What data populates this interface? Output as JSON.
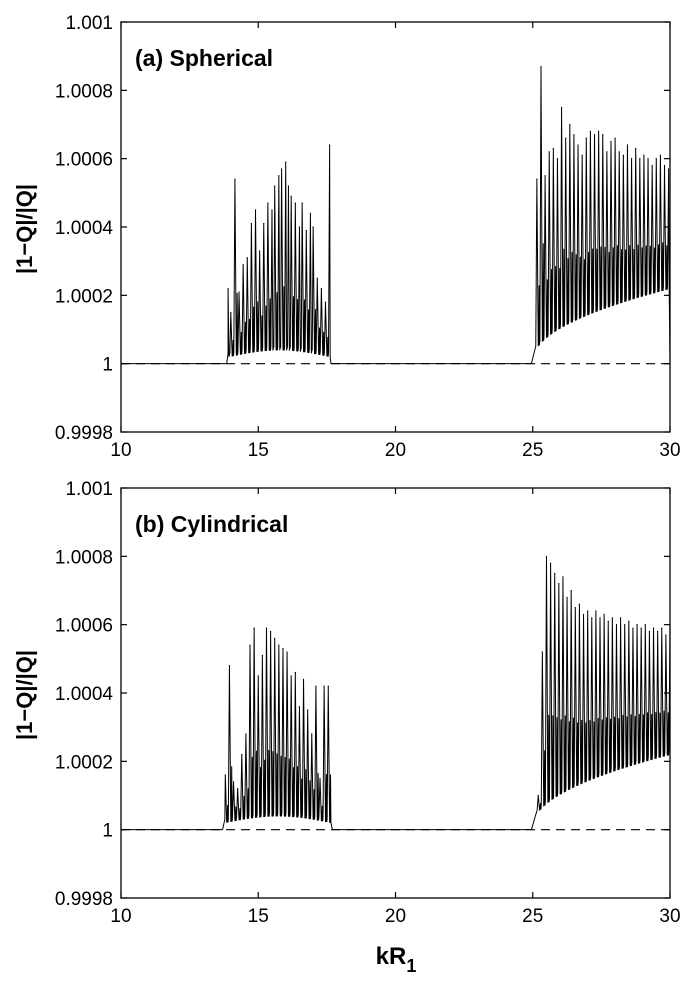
{
  "chart_data": [
    {
      "type": "line",
      "title": "(a) Spherical",
      "xlabel": "",
      "ylabel": "|1−Q|/|Q|",
      "xlim": [
        10,
        30
      ],
      "ylim": [
        0.9998,
        1.001
      ],
      "xticks": [
        "10",
        "15",
        "20",
        "25",
        "30"
      ],
      "yticks": [
        "0.9998",
        "1",
        "1.0002",
        "1.0004",
        "1.0006",
        "1.0008",
        "1.001"
      ],
      "reference_line": {
        "y": 1,
        "style": "dashed"
      },
      "bands": [
        {
          "start": 13.9,
          "end": 17.65,
          "base_start": 1.00002,
          "base_mid": 1.00004,
          "base_end": 1.00002,
          "peaks": [
            [
              13.9,
              1.00022
            ],
            [
              14.0,
              1.00015
            ],
            [
              14.15,
              1.00054
            ],
            [
              14.3,
              1.00021
            ],
            [
              14.45,
              1.00029
            ],
            [
              14.6,
              1.00031
            ],
            [
              14.75,
              1.00041
            ],
            [
              14.9,
              1.00045
            ],
            [
              15.05,
              1.00033
            ],
            [
              15.2,
              1.00041
            ],
            [
              15.35,
              1.00047
            ],
            [
              15.5,
              1.00045
            ],
            [
              15.6,
              1.00052
            ],
            [
              15.75,
              1.00055
            ],
            [
              15.85,
              1.00057
            ],
            [
              16.0,
              1.00059
            ],
            [
              16.1,
              1.00052
            ],
            [
              16.2,
              1.00049
            ],
            [
              16.35,
              1.00047
            ],
            [
              16.5,
              1.0004
            ],
            [
              16.6,
              1.00047
            ],
            [
              16.75,
              1.00039
            ],
            [
              16.9,
              1.00044
            ],
            [
              17.0,
              1.0004
            ],
            [
              17.15,
              1.00025
            ],
            [
              17.3,
              1.00022
            ],
            [
              17.45,
              1.00018
            ],
            [
              17.6,
              1.00064
            ]
          ]
        },
        {
          "start": 25.0,
          "end": 30.0,
          "base_start": 1.00001,
          "base_end": 1.00022,
          "peaks": [
            [
              25.15,
              1.00054
            ],
            [
              25.3,
              1.00087
            ],
            [
              25.45,
              1.00055
            ],
            [
              25.6,
              1.00062
            ],
            [
              25.75,
              1.00063
            ],
            [
              25.9,
              1.0006
            ],
            [
              26.05,
              1.00075
            ],
            [
              26.2,
              1.00066
            ],
            [
              26.35,
              1.0007
            ],
            [
              26.5,
              1.00067
            ],
            [
              26.65,
              1.00064
            ],
            [
              26.8,
              1.00061
            ],
            [
              26.95,
              1.00066
            ],
            [
              27.1,
              1.00068
            ],
            [
              27.25,
              1.00067
            ],
            [
              27.4,
              1.00068
            ],
            [
              27.55,
              1.00067
            ],
            [
              27.7,
              1.00062
            ],
            [
              27.85,
              1.00065
            ],
            [
              28.0,
              1.00066
            ],
            [
              28.15,
              1.00062
            ],
            [
              28.3,
              1.00061
            ],
            [
              28.45,
              1.00064
            ],
            [
              28.6,
              1.0006
            ],
            [
              28.75,
              1.00063
            ],
            [
              28.9,
              1.0006
            ],
            [
              29.05,
              1.00061
            ],
            [
              29.2,
              1.0006
            ],
            [
              29.35,
              1.00058
            ],
            [
              29.5,
              1.0006
            ],
            [
              29.65,
              1.00061
            ],
            [
              29.8,
              1.00058
            ],
            [
              29.95,
              1.00057
            ]
          ]
        }
      ]
    },
    {
      "type": "line",
      "title": "(b) Cylindrical",
      "xlabel": "kR1",
      "ylabel": "|1−Q|/|Q|",
      "xlim": [
        10,
        30
      ],
      "ylim": [
        0.9998,
        1.001
      ],
      "xticks": [
        "10",
        "15",
        "20",
        "25",
        "30"
      ],
      "yticks": [
        "0.9998",
        "1",
        "1.0002",
        "1.0004",
        "1.0006",
        "1.0008",
        "1.001"
      ],
      "reference_line": {
        "y": 1,
        "style": "dashed"
      },
      "bands": [
        {
          "start": 13.75,
          "end": 17.7,
          "base_start": 1.00002,
          "base_mid": 1.00004,
          "base_end": 1.00002,
          "peaks": [
            [
              13.8,
              1.00016
            ],
            [
              13.95,
              1.00048
            ],
            [
              14.1,
              1.00014
            ],
            [
              14.25,
              1.00012
            ],
            [
              14.4,
              1.00022
            ],
            [
              14.55,
              1.00028
            ],
            [
              14.7,
              1.00054
            ],
            [
              14.85,
              1.00059
            ],
            [
              15.0,
              1.00045
            ],
            [
              15.15,
              1.00051
            ],
            [
              15.3,
              1.00059
            ],
            [
              15.45,
              1.00058
            ],
            [
              15.6,
              1.00056
            ],
            [
              15.75,
              1.00054
            ],
            [
              15.9,
              1.00053
            ],
            [
              16.05,
              1.00052
            ],
            [
              16.2,
              1.00045
            ],
            [
              16.35,
              1.00046
            ],
            [
              16.5,
              1.00036
            ],
            [
              16.65,
              1.00044
            ],
            [
              16.8,
              1.00035
            ],
            [
              16.95,
              1.00028
            ],
            [
              17.1,
              1.00042
            ],
            [
              17.25,
              1.00015
            ],
            [
              17.4,
              1.00042
            ],
            [
              17.55,
              1.00042
            ]
          ]
        },
        {
          "start": 25.0,
          "end": 30.0,
          "base_start": 1.00001,
          "base_end": 1.00022,
          "peaks": [
            [
              25.2,
              1.0001
            ],
            [
              25.35,
              1.00052
            ],
            [
              25.5,
              1.0008
            ],
            [
              25.65,
              1.00078
            ],
            [
              25.8,
              1.00075
            ],
            [
              25.95,
              1.00072
            ],
            [
              26.1,
              1.00074
            ],
            [
              26.25,
              1.00068
            ],
            [
              26.4,
              1.0007
            ],
            [
              26.55,
              1.00065
            ],
            [
              26.7,
              1.00066
            ],
            [
              26.85,
              1.00063
            ],
            [
              27.0,
              1.00064
            ],
            [
              27.15,
              1.00062
            ],
            [
              27.3,
              1.00064
            ],
            [
              27.45,
              1.00062
            ],
            [
              27.6,
              1.00063
            ],
            [
              27.75,
              1.00061
            ],
            [
              27.9,
              1.00062
            ],
            [
              28.05,
              1.0006
            ],
            [
              28.2,
              1.00062
            ],
            [
              28.35,
              1.0006
            ],
            [
              28.5,
              1.00061
            ],
            [
              28.65,
              1.00059
            ],
            [
              28.8,
              1.0006
            ],
            [
              28.95,
              1.00059
            ],
            [
              29.1,
              1.0006
            ],
            [
              29.25,
              1.00058
            ],
            [
              29.4,
              1.00059
            ],
            [
              29.55,
              1.00058
            ],
            [
              29.7,
              1.00059
            ],
            [
              29.85,
              1.00057
            ],
            [
              30.0,
              1.0006
            ]
          ]
        }
      ]
    }
  ],
  "figure": {
    "xlabel_main": "kR",
    "xlabel_sub": "1"
  }
}
